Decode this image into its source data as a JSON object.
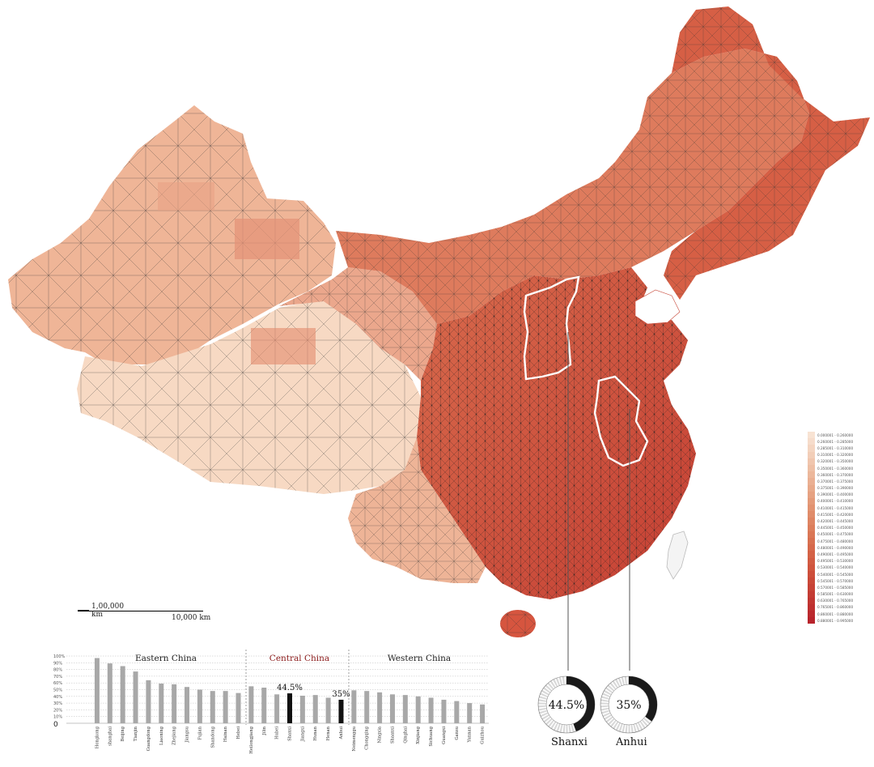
{
  "map": {
    "highlight_regions": [
      "Shanxi",
      "Anhui"
    ],
    "scale_bar_small": "1,00,000 km",
    "scale_bar_large": "10,000 km"
  },
  "legend": {
    "items": [
      {
        "label": "0.000001 - 0.260000",
        "color": "#f8e3d3"
      },
      {
        "label": "0.260001 - 0.285000",
        "color": "#f6dccb"
      },
      {
        "label": "0.285001 - 0.310000",
        "color": "#f4d5c1"
      },
      {
        "label": "0.310001 - 0.320000",
        "color": "#f2ceb8"
      },
      {
        "label": "0.320001 - 0.350000",
        "color": "#f0c6ae"
      },
      {
        "label": "0.350001 - 0.360000",
        "color": "#eebfa5"
      },
      {
        "label": "0.360001 - 0.370000",
        "color": "#ecb89c"
      },
      {
        "label": "0.370001 - 0.375000",
        "color": "#eab093"
      },
      {
        "label": "0.375001 - 0.390000",
        "color": "#e8a98a"
      },
      {
        "label": "0.390001 - 0.400000",
        "color": "#e6a282"
      },
      {
        "label": "0.400001 - 0.410000",
        "color": "#e49a79"
      },
      {
        "label": "0.410001 - 0.415000",
        "color": "#e29371"
      },
      {
        "label": "0.415001 - 0.420000",
        "color": "#e08c6a"
      },
      {
        "label": "0.420001 - 0.445000",
        "color": "#de8563"
      },
      {
        "label": "0.445001 - 0.450000",
        "color": "#dc7e5c"
      },
      {
        "label": "0.450001 - 0.475000",
        "color": "#da7756"
      },
      {
        "label": "0.475001 - 0.480000",
        "color": "#d87050"
      },
      {
        "label": "0.480001 - 0.490000",
        "color": "#d6694b"
      },
      {
        "label": "0.490001 - 0.495000",
        "color": "#d46246"
      },
      {
        "label": "0.495001 - 0.530000",
        "color": "#d25b42"
      },
      {
        "label": "0.530001 - 0.540000",
        "color": "#d0553e"
      },
      {
        "label": "0.540001 - 0.545000",
        "color": "#cd4e3b"
      },
      {
        "label": "0.545001 - 0.570000",
        "color": "#ca4838"
      },
      {
        "label": "0.570001 - 0.585000",
        "color": "#c74236"
      },
      {
        "label": "0.585001 - 0.630000",
        "color": "#c43c34"
      },
      {
        "label": "0.630001 - 0.765000",
        "color": "#c13632"
      },
      {
        "label": "0.765001 - 0.860000",
        "color": "#be3030"
      },
      {
        "label": "0.860001 - 0.880000",
        "color": "#bb2a2e"
      },
      {
        "label": "0.880001 - 0.995000",
        "color": "#b8242c"
      }
    ]
  },
  "donuts": [
    {
      "name": "Shanxi",
      "value_label": "44.5%",
      "fraction": 0.445
    },
    {
      "name": "Anhui",
      "value_label": "35%",
      "fraction": 0.35
    }
  ],
  "chart_data": {
    "type": "bar",
    "groups": [
      {
        "label": "Eastern China",
        "color": "#222222"
      },
      {
        "label": "Central China",
        "color": "#8b1a1a"
      },
      {
        "label": "Western China",
        "color": "#222222"
      }
    ],
    "yticks": [
      "100%",
      "90%",
      "80%",
      "70%",
      "60%",
      "50%",
      "40%",
      "30%",
      "20%",
      "10%"
    ],
    "zero_label": "0",
    "ylim": [
      0,
      100
    ],
    "annotations": [
      {
        "category": "Shanxi",
        "text": "44.5%"
      },
      {
        "category": "Anhui",
        "text": "35%"
      }
    ],
    "categories": [
      "Hongkong",
      "shanghai",
      "Beijing",
      "Tianjin",
      "Guangdong",
      "Liaoning",
      "Zhejiang",
      "Jiangsu",
      "Fujian",
      "Shandong",
      "Hainan",
      "Hebei",
      "Heilongjiang",
      "Jilin",
      "Hubei",
      "Shanxi",
      "Jiangxi",
      "Hunan",
      "Henan",
      "Anhui",
      "Neimenggu",
      "Chongqing",
      "Ningxia",
      "Shaanxi",
      "Qinghai",
      "Xinjiang",
      "Sichuang",
      "Guangxi",
      "Gansu",
      "Yunnan",
      "Guizhou"
    ],
    "group_of": [
      0,
      0,
      0,
      0,
      0,
      0,
      0,
      0,
      0,
      0,
      0,
      0,
      1,
      1,
      1,
      1,
      1,
      1,
      1,
      1,
      2,
      2,
      2,
      2,
      2,
      2,
      2,
      2,
      2,
      2,
      2
    ],
    "values": [
      97,
      89,
      85,
      77,
      64,
      59,
      58,
      54,
      50,
      48,
      48,
      45,
      55,
      53,
      43,
      44.5,
      41,
      42,
      38,
      35,
      49,
      48,
      46,
      43,
      42,
      40,
      38,
      35,
      33,
      30,
      28
    ],
    "highlighted": [
      "Shanxi",
      "Anhui"
    ]
  }
}
